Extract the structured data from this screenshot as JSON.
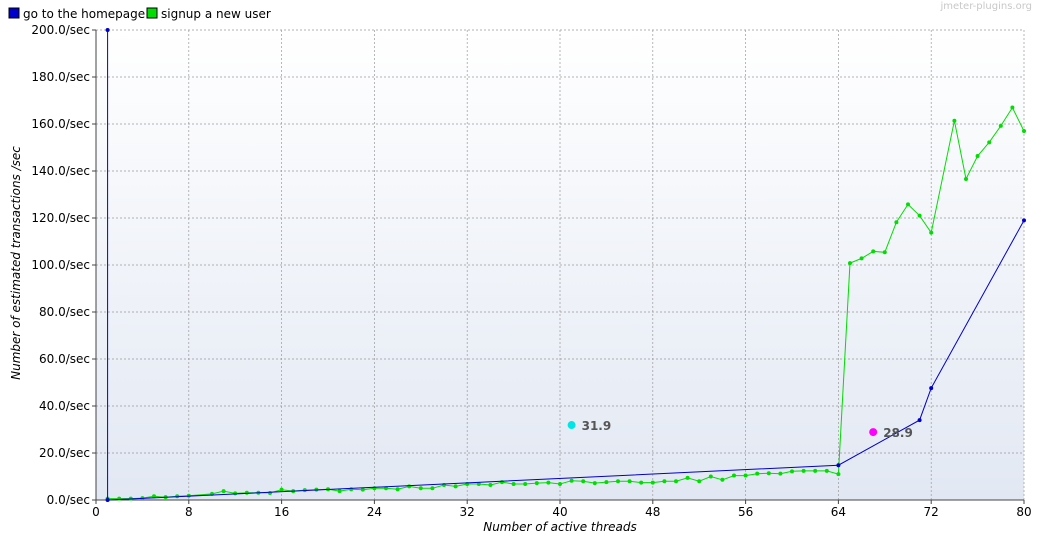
{
  "chart_data": {
    "type": "line",
    "watermark": "jmeter-plugins.org",
    "xlabel": "Number of active threads",
    "ylabel": "Number of estimated transactions /sec",
    "xlim": [
      0,
      80
    ],
    "ylim": [
      0,
      200
    ],
    "x_ticks": [
      "0",
      "8",
      "16",
      "24",
      "32",
      "40",
      "48",
      "56",
      "64",
      "72",
      "80"
    ],
    "x_tick_values": [
      0,
      8,
      16,
      24,
      32,
      40,
      48,
      56,
      64,
      72,
      80
    ],
    "y_ticks": [
      "0.0/sec",
      "20.0/sec",
      "40.0/sec",
      "60.0/sec",
      "80.0/sec",
      "100.0/sec",
      "120.0/sec",
      "140.0/sec",
      "160.0/sec",
      "180.0/sec",
      "200.0/sec"
    ],
    "y_tick_values": [
      0,
      20,
      40,
      60,
      80,
      100,
      120,
      140,
      160,
      180,
      200
    ],
    "grid": true,
    "legend_position": "top-left",
    "series": [
      {
        "name": "go to the homepage",
        "color": "#0000cc",
        "points": [
          [
            1,
            200
          ],
          [
            1,
            0
          ],
          [
            64,
            14.8
          ],
          [
            71,
            34
          ],
          [
            72,
            47.6
          ],
          [
            80,
            119
          ]
        ]
      },
      {
        "name": "signup a new user",
        "color": "#00dd00",
        "points": [
          [
            1,
            0.6
          ],
          [
            2,
            0.6
          ],
          [
            3,
            0.6
          ],
          [
            4,
            0.8
          ],
          [
            5,
            1.6
          ],
          [
            6,
            1.2
          ],
          [
            7,
            1.6
          ],
          [
            8,
            1.8
          ],
          [
            10,
            2.6
          ],
          [
            11,
            3.8
          ],
          [
            12,
            2.8
          ],
          [
            13,
            3.1
          ],
          [
            14,
            3.1
          ],
          [
            15,
            3.0
          ],
          [
            16,
            4.4
          ],
          [
            17,
            3.8
          ],
          [
            18,
            4.2
          ],
          [
            19,
            4.4
          ],
          [
            20,
            4.6
          ],
          [
            21,
            3.8
          ],
          [
            22,
            4.6
          ],
          [
            23,
            4.4
          ],
          [
            24,
            5.0
          ],
          [
            25,
            5.0
          ],
          [
            26,
            4.6
          ],
          [
            27,
            5.8
          ],
          [
            28,
            5.0
          ],
          [
            29,
            5.0
          ],
          [
            30,
            6.4
          ],
          [
            31,
            5.8
          ],
          [
            32,
            6.8
          ],
          [
            33,
            6.8
          ],
          [
            34,
            6.4
          ],
          [
            35,
            7.6
          ],
          [
            36,
            6.8
          ],
          [
            37,
            6.8
          ],
          [
            38,
            7.2
          ],
          [
            39,
            7.4
          ],
          [
            40,
            6.8
          ],
          [
            41,
            8.2
          ],
          [
            42,
            8.0
          ],
          [
            43,
            7.2
          ],
          [
            44,
            7.6
          ],
          [
            45,
            8.0
          ],
          [
            46,
            8.0
          ],
          [
            47,
            7.4
          ],
          [
            48,
            7.4
          ],
          [
            49,
            8.0
          ],
          [
            50,
            8.0
          ],
          [
            51,
            9.4
          ],
          [
            52,
            8.0
          ],
          [
            53,
            10.0
          ],
          [
            54,
            8.6
          ],
          [
            55,
            10.4
          ],
          [
            56,
            10.4
          ],
          [
            57,
            11.2
          ],
          [
            58,
            11.4
          ],
          [
            59,
            11.2
          ],
          [
            60,
            12.2
          ],
          [
            61,
            12.4
          ],
          [
            62,
            12.4
          ],
          [
            63,
            12.4
          ],
          [
            64,
            11.0
          ],
          [
            65,
            100.8
          ],
          [
            66,
            102.8
          ],
          [
            67,
            105.8
          ],
          [
            68,
            105.4
          ],
          [
            69,
            118.2
          ],
          [
            70,
            125.8
          ],
          [
            71,
            121.0
          ],
          [
            72,
            113.8
          ],
          [
            74,
            161.4
          ],
          [
            75,
            136.6
          ],
          [
            76,
            146.4
          ],
          [
            77,
            152.2
          ],
          [
            78,
            159.2
          ],
          [
            79,
            167.0
          ],
          [
            80,
            157.0
          ]
        ]
      }
    ],
    "markers": [
      {
        "x": 41,
        "y": 31.9,
        "label": "31.9",
        "color": "#00e5e5"
      },
      {
        "x": 67,
        "y": 28.9,
        "label": "28.9",
        "color": "#ff00ff"
      }
    ]
  }
}
